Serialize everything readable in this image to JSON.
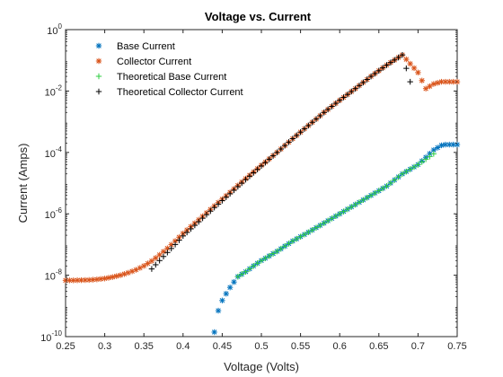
{
  "chart_data": {
    "type": "scatter",
    "title": "Voltage vs. Current",
    "xlabel": "Voltage (Volts)",
    "ylabel": "Current (Amps)",
    "xlim": [
      0.25,
      0.75
    ],
    "ylim": [
      1e-10,
      1
    ],
    "yscale": "log",
    "grid": false,
    "legend_position": "top-left",
    "x_ticks": [
      "0.25",
      "0.3",
      "0.35",
      "0.4",
      "0.45",
      "0.5",
      "0.55",
      "0.6",
      "0.65",
      "0.7",
      "0.75"
    ],
    "x_tick_values": [
      0.25,
      0.3,
      0.35,
      0.4,
      0.45,
      0.5,
      0.55,
      0.6,
      0.65,
      0.7,
      0.75
    ],
    "y_ticks": [
      {
        "base": "10",
        "exp": "-10",
        "value": 1e-10
      },
      {
        "base": "10",
        "exp": "-8",
        "value": 1e-08
      },
      {
        "base": "10",
        "exp": "-6",
        "value": 1e-06
      },
      {
        "base": "10",
        "exp": "-4",
        "value": 0.0001
      },
      {
        "base": "10",
        "exp": "-2",
        "value": 0.01
      },
      {
        "base": "10",
        "exp": "0",
        "value": 1
      }
    ],
    "series": [
      {
        "name": "Base Current",
        "marker": "asterisk",
        "color": "#0072BD",
        "x": [
          0.44,
          0.445,
          0.45,
          0.455,
          0.46,
          0.465,
          0.47,
          0.48,
          0.49,
          0.5,
          0.52,
          0.54,
          0.56,
          0.58,
          0.6,
          0.62,
          0.64,
          0.66,
          0.68,
          0.7,
          0.72,
          0.73,
          0.735,
          0.74,
          0.745,
          0.75
        ],
        "y": [
          1.4e-10,
          7e-10,
          1.5e-09,
          2.5e-09,
          4e-09,
          6e-09,
          9e-09,
          1.3e-08,
          2e-08,
          3e-08,
          6e-08,
          1.3e-07,
          2.5e-07,
          5e-07,
          1e-06,
          2e-06,
          4e-06,
          8e-06,
          2e-05,
          4e-05,
          0.00012,
          0.00017,
          0.00018,
          0.00018,
          0.00018,
          0.00018
        ]
      },
      {
        "name": "Collector Current",
        "marker": "asterisk",
        "color": "#D95319",
        "x": [
          0.25,
          0.26,
          0.27,
          0.28,
          0.29,
          0.3,
          0.31,
          0.32,
          0.33,
          0.34,
          0.35,
          0.36,
          0.37,
          0.38,
          0.39,
          0.4,
          0.42,
          0.44,
          0.46,
          0.48,
          0.5,
          0.52,
          0.54,
          0.56,
          0.58,
          0.6,
          0.62,
          0.64,
          0.66,
          0.68,
          0.7,
          0.71,
          0.72,
          0.73,
          0.74,
          0.75
        ],
        "y": [
          6.8e-09,
          6.8e-09,
          6.9e-09,
          7e-09,
          7.3e-09,
          7.8e-09,
          8.7e-09,
          1e-08,
          1.2e-08,
          1.5e-08,
          2e-08,
          2.9e-08,
          4.6e-08,
          7.5e-08,
          1.3e-07,
          2.3e-07,
          6.4e-07,
          1.8e-06,
          5e-06,
          1.4e-05,
          3.8e-05,
          0.0001,
          0.00028,
          0.00075,
          0.002,
          0.005,
          0.012,
          0.03,
          0.07,
          0.15,
          0.04,
          0.012,
          0.017,
          0.02,
          0.02,
          0.02
        ]
      },
      {
        "name": "Theoretical Base Current",
        "marker": "plus",
        "color": "#2ECC40",
        "x": [
          0.47,
          0.48,
          0.49,
          0.5,
          0.52,
          0.54,
          0.56,
          0.58,
          0.6,
          0.62,
          0.64,
          0.66,
          0.68,
          0.7,
          0.71,
          0.72
        ],
        "y": [
          9e-09,
          1.3e-08,
          2e-08,
          3e-08,
          6e-08,
          1.3e-07,
          2.5e-07,
          5e-07,
          1e-06,
          2e-06,
          4e-06,
          8e-06,
          2e-05,
          4e-05,
          6e-05,
          9e-05
        ]
      },
      {
        "name": "Theoretical Collector Current",
        "marker": "plus",
        "color": "#000000",
        "x": [
          0.36,
          0.37,
          0.38,
          0.39,
          0.4,
          0.42,
          0.44,
          0.46,
          0.48,
          0.5,
          0.52,
          0.54,
          0.56,
          0.58,
          0.6,
          0.62,
          0.64,
          0.66,
          0.68,
          0.69
        ],
        "y": [
          1.6e-08,
          3e-08,
          5.5e-08,
          1e-07,
          1.9e-07,
          5.5e-07,
          1.6e-06,
          4.5e-06,
          1.3e-05,
          3.6e-05,
          0.0001,
          0.00028,
          0.00075,
          0.002,
          0.005,
          0.012,
          0.03,
          0.07,
          0.15,
          0.02
        ]
      }
    ]
  }
}
